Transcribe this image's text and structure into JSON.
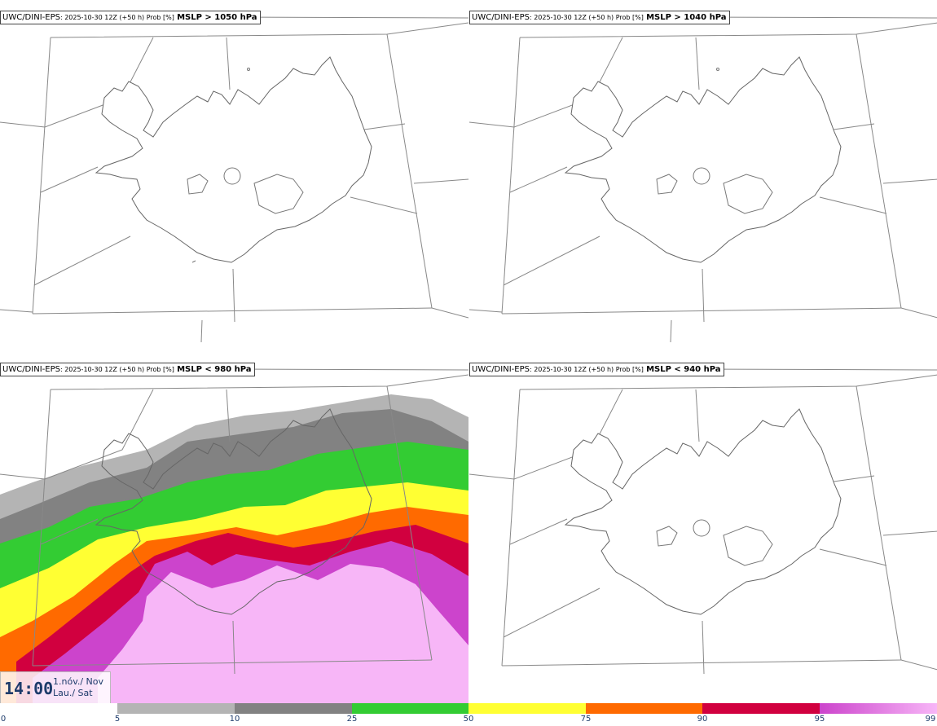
{
  "panels": [
    {
      "model": "UWC/DINI-EPS",
      "run": ": 2025-10-30 12Z (+50 h) Prob [%]",
      "condition": "MSLP > 1050 hPa"
    },
    {
      "model": "UWC/DINI-EPS",
      "run": ": 2025-10-30 12Z (+50 h) Prob [%]",
      "condition": "MSLP > 1040 hPa"
    },
    {
      "model": "UWC/DINI-EPS",
      "run": ": 2025-10-30 12Z (+50 h) Prob [%]",
      "condition": "MSLP < 980 hPa"
    },
    {
      "model": "UWC/DINI-EPS",
      "run": ": 2025-10-30 12Z (+50 h) Prob [%]",
      "condition": "MSLP < 940 hPa"
    }
  ],
  "time": {
    "clock": "14:00",
    "date_line1": "1.nóv./ Nov",
    "date_line2": "Lau./ Sat"
  },
  "colorbar": {
    "ticks": [
      "0",
      "5",
      "10",
      "25",
      "50",
      "75",
      "90",
      "95",
      "99"
    ],
    "bins": [
      {
        "from": 0,
        "to": 5,
        "color": "#ffffff"
      },
      {
        "from": 5,
        "to": 10,
        "color": "#b4b4b4"
      },
      {
        "from": 10,
        "to": 25,
        "color": "#828282"
      },
      {
        "from": 25,
        "to": 50,
        "color": "#33cc33"
      },
      {
        "from": 50,
        "to": 75,
        "color": "#ffff33"
      },
      {
        "from": 75,
        "to": 90,
        "color": "#ff6a00"
      },
      {
        "from": 90,
        "to": 95,
        "color": "#d1003f"
      },
      {
        "from": 95,
        "to": 99,
        "color": "#cc44cc"
      },
      {
        "from": 99,
        "to": 100,
        "color": "#f7b6f7"
      }
    ]
  }
}
